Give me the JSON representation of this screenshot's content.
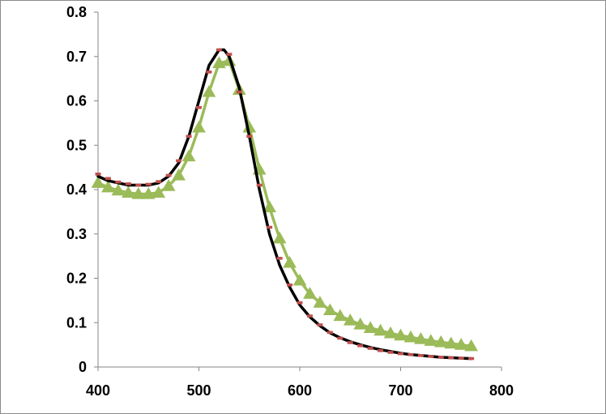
{
  "chart_data": {
    "type": "line",
    "title": "",
    "xlabel": "",
    "ylabel": "",
    "xlim": [
      400,
      800
    ],
    "ylim": [
      0,
      0.8
    ],
    "x_ticks": [
      "400",
      "500",
      "600",
      "700",
      "800"
    ],
    "y_ticks": [
      "0",
      "0.1",
      "0.2",
      "0.3",
      "0.4",
      "0.5",
      "0.6",
      "0.7",
      "0.8"
    ],
    "grid": false,
    "legend": "none",
    "series": [
      {
        "style": "solid-black-line",
        "color": "#000000",
        "x": [
          400,
          410,
          420,
          430,
          440,
          450,
          460,
          470,
          480,
          490,
          500,
          510,
          520,
          525,
          530,
          540,
          550,
          560,
          570,
          580,
          590,
          600,
          610,
          620,
          630,
          640,
          650,
          660,
          670,
          680,
          690,
          700,
          710,
          720,
          730,
          740,
          750,
          760,
          770
        ],
        "y": [
          0.43,
          0.42,
          0.415,
          0.41,
          0.41,
          0.41,
          0.415,
          0.43,
          0.46,
          0.52,
          0.6,
          0.68,
          0.715,
          0.715,
          0.7,
          0.63,
          0.52,
          0.4,
          0.3,
          0.23,
          0.18,
          0.14,
          0.113,
          0.093,
          0.077,
          0.066,
          0.057,
          0.05,
          0.044,
          0.039,
          0.035,
          0.031,
          0.028,
          0.026,
          0.024,
          0.022,
          0.021,
          0.02,
          0.019
        ]
      },
      {
        "style": "red-dashed-marker",
        "color": "#c0504d",
        "x": [
          400,
          410,
          420,
          430,
          440,
          450,
          460,
          470,
          480,
          490,
          500,
          510,
          520,
          530,
          540,
          550,
          560,
          570,
          580,
          590,
          600,
          610,
          620,
          630,
          640,
          650,
          660,
          670,
          680,
          690,
          700,
          710,
          720,
          730,
          740,
          750,
          760,
          770
        ],
        "y": [
          0.435,
          0.425,
          0.417,
          0.413,
          0.41,
          0.412,
          0.418,
          0.432,
          0.465,
          0.52,
          0.585,
          0.665,
          0.715,
          0.705,
          0.62,
          0.52,
          0.41,
          0.315,
          0.245,
          0.185,
          0.145,
          0.115,
          0.095,
          0.078,
          0.065,
          0.055,
          0.048,
          0.042,
          0.037,
          0.033,
          0.03,
          0.028,
          0.026,
          0.024,
          0.022,
          0.021,
          0.02,
          0.019
        ]
      },
      {
        "style": "green-triangle-line",
        "color": "#9bbb59",
        "x": [
          400,
          410,
          420,
          430,
          440,
          450,
          460,
          470,
          480,
          490,
          500,
          510,
          520,
          530,
          540,
          550,
          560,
          570,
          580,
          590,
          600,
          610,
          620,
          630,
          640,
          650,
          660,
          670,
          680,
          690,
          700,
          710,
          720,
          730,
          740,
          750,
          760,
          770
        ],
        "y": [
          0.415,
          0.405,
          0.398,
          0.393,
          0.39,
          0.39,
          0.393,
          0.408,
          0.432,
          0.475,
          0.54,
          0.62,
          0.685,
          0.69,
          0.625,
          0.54,
          0.445,
          0.36,
          0.29,
          0.235,
          0.195,
          0.165,
          0.145,
          0.128,
          0.115,
          0.105,
          0.096,
          0.088,
          0.082,
          0.076,
          0.071,
          0.067,
          0.063,
          0.059,
          0.056,
          0.053,
          0.05,
          0.047
        ]
      }
    ]
  }
}
